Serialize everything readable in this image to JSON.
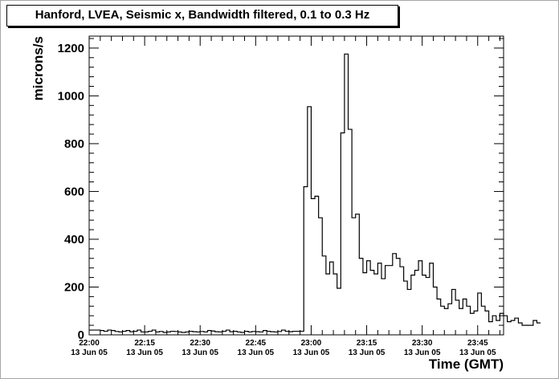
{
  "title": "Hanford, LVEA, Seismic x, Bandwidth filtered, 0.1 to 0.3 Hz",
  "chart_data": {
    "type": "line",
    "title": "Hanford, LVEA, Seismic x, Bandwidth filtered, 0.1 to 0.3 Hz",
    "xlabel": "Time (GMT)",
    "ylabel": "microns/s",
    "ylim": [
      0,
      1250
    ],
    "xlim_minutes_after_22_00": [
      0,
      112
    ],
    "y_ticks": [
      "0",
      "200",
      "400",
      "600",
      "800",
      "1000",
      "1200"
    ],
    "x_ticks": [
      {
        "time": "22:00",
        "date": "13 Jun 05"
      },
      {
        "time": "22:15",
        "date": "13 Jun 05"
      },
      {
        "time": "22:30",
        "date": "13 Jun 05"
      },
      {
        "time": "22:45",
        "date": "13 Jun 05"
      },
      {
        "time": "23:00",
        "date": "13 Jun 05"
      },
      {
        "time": "23:15",
        "date": "13 Jun 05"
      },
      {
        "time": "23:30",
        "date": "13 Jun 05"
      },
      {
        "time": "23:45",
        "date": "13 Jun 05"
      }
    ],
    "bin_width_minutes": 1,
    "series": [
      {
        "style": "histogram-step",
        "color": "#000000",
        "values": [
          20,
          20,
          20,
          18,
          15,
          20,
          18,
          14,
          12,
          15,
          18,
          13,
          15,
          20,
          12,
          12,
          15,
          20,
          12,
          14,
          10,
          12,
          15,
          14,
          12,
          10,
          12,
          15,
          13,
          12,
          14,
          12,
          18,
          16,
          13,
          12,
          15,
          20,
          13,
          15,
          12,
          10,
          15,
          12,
          14,
          13,
          12,
          18,
          15,
          13,
          12,
          14,
          20,
          15,
          13,
          15,
          15,
          15,
          620,
          955,
          570,
          580,
          490,
          330,
          255,
          305,
          255,
          195,
          845,
          1175,
          860,
          490,
          505,
          320,
          260,
          310,
          270,
          255,
          300,
          235,
          290,
          290,
          340,
          320,
          285,
          225,
          190,
          250,
          270,
          310,
          250,
          240,
          300,
          200,
          150,
          120,
          110,
          130,
          190,
          145,
          110,
          150,
          120,
          90,
          100,
          175,
          120,
          100,
          55,
          80,
          60,
          90,
          80,
          55,
          60,
          70,
          50,
          40,
          40,
          40,
          60,
          50
        ]
      }
    ]
  }
}
